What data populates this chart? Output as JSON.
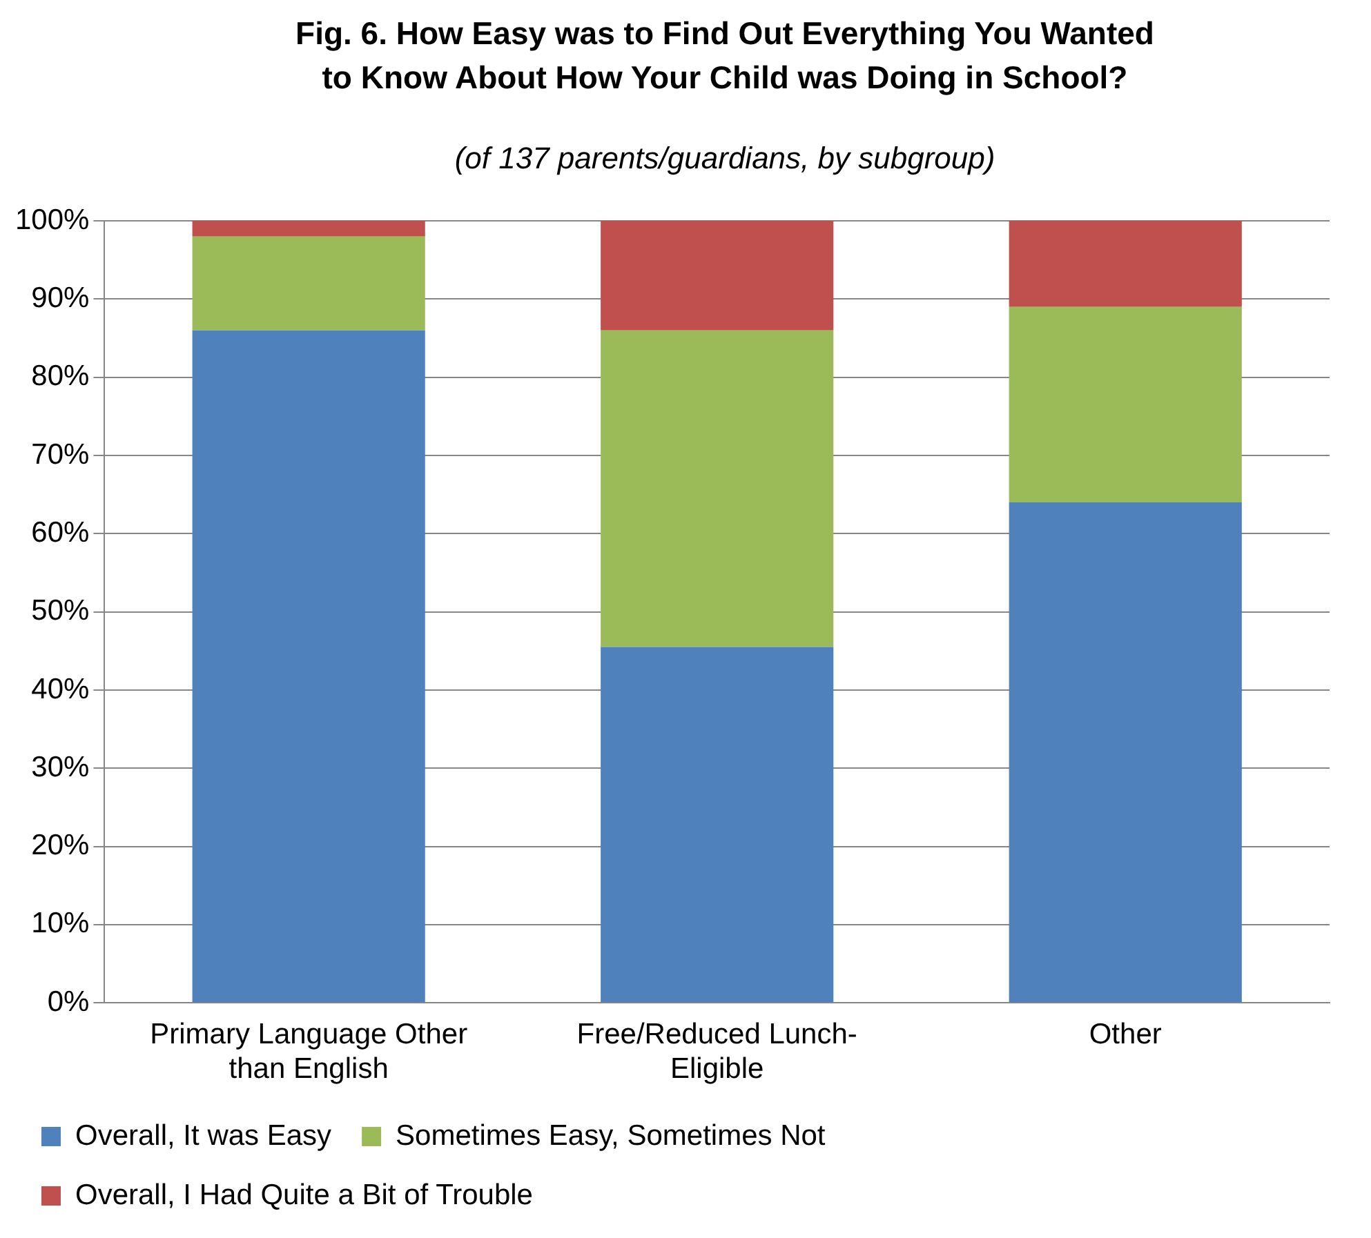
{
  "chart_data": {
    "type": "bar",
    "title": "Fig. 6. How Easy was to Find Out Everything You Wanted to Know About How Your Child was Doing in School?",
    "subtitle": "(of 137 parents/guardians, by subgroup)",
    "categories": [
      "Primary Language Other than English",
      "Free/Reduced Lunch-Eligible",
      "Other"
    ],
    "series": [
      {
        "name": "Overall, It was Easy",
        "color": "#4f81bd",
        "values": [
          86,
          45.5,
          64
        ]
      },
      {
        "name": "Sometimes Easy, Sometimes Not",
        "color": "#9bbb59",
        "values": [
          12,
          40.5,
          25
        ]
      },
      {
        "name": "Overall, I Had Quite a Bit of Trouble",
        "color": "#c0504d",
        "values": [
          2,
          14,
          11
        ]
      }
    ],
    "stacked": true,
    "ylim": [
      0,
      100
    ],
    "yticks": [
      {
        "value": 0,
        "label": "0%"
      },
      {
        "value": 10,
        "label": "10%"
      },
      {
        "value": 20,
        "label": "20%"
      },
      {
        "value": 30,
        "label": "30%"
      },
      {
        "value": 40,
        "label": "40%"
      },
      {
        "value": 50,
        "label": "50%"
      },
      {
        "value": 60,
        "label": "60%"
      },
      {
        "value": 70,
        "label": "70%"
      },
      {
        "value": 80,
        "label": "80%"
      },
      {
        "value": 90,
        "label": "90%"
      },
      {
        "value": 100,
        "label": "100%"
      }
    ],
    "grid": "y",
    "legend": "bottom"
  }
}
